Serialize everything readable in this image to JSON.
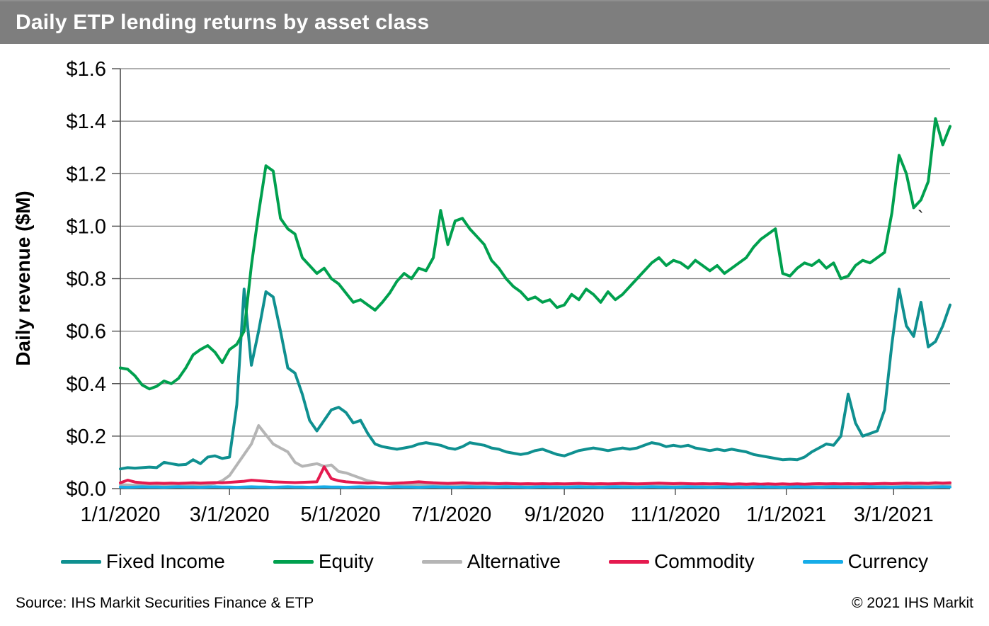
{
  "header": {
    "title": "Daily ETP lending returns by asset class"
  },
  "footer": {
    "source": "Source: IHS Markit Securities Finance & ETP",
    "copyright": "© 2021 IHS Markit"
  },
  "stray_mark": "`",
  "chart_data": {
    "type": "line",
    "title": "Daily ETP lending returns by asset class",
    "xlabel": "",
    "ylabel": "Daily revenue ($M)",
    "ylim": [
      0,
      1.6
    ],
    "grid": "horizontal",
    "legend_position": "bottom",
    "x_start_date": "1/1/2020",
    "x_span_days": 456,
    "sample_step_days": 4,
    "y_ticks": [
      {
        "value": 0.0,
        "label": "$0.0"
      },
      {
        "value": 0.2,
        "label": "$0.2"
      },
      {
        "value": 0.4,
        "label": "$0.4"
      },
      {
        "value": 0.6,
        "label": "$0.6"
      },
      {
        "value": 0.8,
        "label": "$0.8"
      },
      {
        "value": 1.0,
        "label": "$1.0"
      },
      {
        "value": 1.2,
        "label": "$1.2"
      },
      {
        "value": 1.4,
        "label": "$1.4"
      },
      {
        "value": 1.6,
        "label": "$1.6"
      }
    ],
    "x_ticks": [
      {
        "day": 0,
        "label": "1/1/2020"
      },
      {
        "day": 60,
        "label": "3/1/2020"
      },
      {
        "day": 121,
        "label": "5/1/2020"
      },
      {
        "day": 182,
        "label": "7/1/2020"
      },
      {
        "day": 244,
        "label": "9/1/2020"
      },
      {
        "day": 305,
        "label": "11/1/2020"
      },
      {
        "day": 366,
        "label": "1/1/2021"
      },
      {
        "day": 425,
        "label": "3/1/2021"
      }
    ],
    "series": [
      {
        "name": "Fixed Income",
        "color": "#0f9090",
        "values": [
          0.075,
          0.08,
          0.078,
          0.08,
          0.082,
          0.08,
          0.1,
          0.095,
          0.09,
          0.092,
          0.11,
          0.095,
          0.12,
          0.125,
          0.115,
          0.12,
          0.32,
          0.76,
          0.47,
          0.6,
          0.75,
          0.73,
          0.6,
          0.46,
          0.44,
          0.36,
          0.26,
          0.22,
          0.26,
          0.3,
          0.31,
          0.29,
          0.25,
          0.26,
          0.21,
          0.17,
          0.16,
          0.155,
          0.15,
          0.155,
          0.16,
          0.17,
          0.175,
          0.17,
          0.165,
          0.155,
          0.15,
          0.16,
          0.175,
          0.17,
          0.165,
          0.155,
          0.15,
          0.14,
          0.135,
          0.13,
          0.135,
          0.145,
          0.15,
          0.14,
          0.13,
          0.125,
          0.135,
          0.145,
          0.15,
          0.155,
          0.15,
          0.145,
          0.15,
          0.155,
          0.15,
          0.155,
          0.165,
          0.175,
          0.17,
          0.16,
          0.165,
          0.16,
          0.165,
          0.155,
          0.15,
          0.145,
          0.15,
          0.145,
          0.15,
          0.145,
          0.14,
          0.13,
          0.125,
          0.12,
          0.115,
          0.11,
          0.112,
          0.11,
          0.12,
          0.14,
          0.155,
          0.17,
          0.165,
          0.2,
          0.36,
          0.25,
          0.2,
          0.21,
          0.22,
          0.3,
          0.55,
          0.76,
          0.62,
          0.58,
          0.71,
          0.54,
          0.56,
          0.62,
          0.7
        ]
      },
      {
        "name": "Equity",
        "color": "#00a04e",
        "values": [
          0.46,
          0.455,
          0.43,
          0.395,
          0.38,
          0.39,
          0.41,
          0.4,
          0.42,
          0.46,
          0.51,
          0.53,
          0.545,
          0.52,
          0.48,
          0.53,
          0.55,
          0.6,
          0.85,
          1.05,
          1.23,
          1.21,
          1.03,
          0.99,
          0.97,
          0.88,
          0.85,
          0.82,
          0.84,
          0.8,
          0.78,
          0.745,
          0.71,
          0.72,
          0.7,
          0.68,
          0.71,
          0.745,
          0.79,
          0.82,
          0.8,
          0.84,
          0.83,
          0.88,
          1.06,
          0.93,
          1.02,
          1.03,
          0.99,
          0.96,
          0.93,
          0.87,
          0.84,
          0.8,
          0.77,
          0.75,
          0.72,
          0.73,
          0.71,
          0.72,
          0.69,
          0.7,
          0.74,
          0.72,
          0.76,
          0.74,
          0.71,
          0.75,
          0.72,
          0.74,
          0.77,
          0.8,
          0.83,
          0.86,
          0.88,
          0.85,
          0.87,
          0.86,
          0.84,
          0.87,
          0.85,
          0.83,
          0.85,
          0.82,
          0.84,
          0.86,
          0.88,
          0.92,
          0.95,
          0.97,
          0.99,
          0.82,
          0.81,
          0.84,
          0.86,
          0.85,
          0.87,
          0.84,
          0.86,
          0.8,
          0.81,
          0.85,
          0.87,
          0.86,
          0.88,
          0.9,
          1.05,
          1.27,
          1.2,
          1.07,
          1.1,
          1.17,
          1.41,
          1.31,
          1.38
        ]
      },
      {
        "name": "Alternative",
        "color": "#b5b5b5",
        "values": [
          0.015,
          0.014,
          0.013,
          0.014,
          0.013,
          0.012,
          0.013,
          0.014,
          0.013,
          0.014,
          0.015,
          0.014,
          0.016,
          0.02,
          0.03,
          0.05,
          0.09,
          0.13,
          0.17,
          0.24,
          0.205,
          0.17,
          0.155,
          0.14,
          0.1,
          0.085,
          0.09,
          0.095,
          0.085,
          0.09,
          0.065,
          0.06,
          0.05,
          0.04,
          0.03,
          0.025,
          0.02,
          0.018,
          0.016,
          0.015,
          0.016,
          0.015,
          0.016,
          0.015,
          0.014,
          0.015,
          0.014,
          0.015,
          0.016,
          0.015,
          0.014,
          0.015,
          0.014,
          0.013,
          0.014,
          0.013,
          0.014,
          0.015,
          0.014,
          0.013,
          0.014,
          0.013,
          0.014,
          0.015,
          0.014,
          0.013,
          0.014,
          0.013,
          0.014,
          0.015,
          0.014,
          0.013,
          0.014,
          0.015,
          0.014,
          0.013,
          0.014,
          0.013,
          0.014,
          0.013,
          0.012,
          0.013,
          0.012,
          0.013,
          0.012,
          0.013,
          0.012,
          0.013,
          0.012,
          0.013,
          0.012,
          0.013,
          0.012,
          0.013,
          0.012,
          0.013,
          0.012,
          0.013,
          0.014,
          0.013,
          0.014,
          0.013,
          0.012,
          0.013,
          0.012,
          0.013,
          0.014,
          0.013,
          0.014,
          0.013,
          0.014,
          0.013,
          0.014,
          0.013,
          0.014
        ]
      },
      {
        "name": "Commodity",
        "color": "#e51a4f",
        "values": [
          0.022,
          0.032,
          0.025,
          0.022,
          0.02,
          0.021,
          0.02,
          0.021,
          0.02,
          0.021,
          0.022,
          0.021,
          0.022,
          0.023,
          0.022,
          0.024,
          0.026,
          0.028,
          0.032,
          0.03,
          0.028,
          0.026,
          0.025,
          0.024,
          0.023,
          0.024,
          0.025,
          0.026,
          0.083,
          0.038,
          0.03,
          0.026,
          0.024,
          0.022,
          0.021,
          0.022,
          0.021,
          0.02,
          0.021,
          0.022,
          0.024,
          0.026,
          0.024,
          0.022,
          0.021,
          0.02,
          0.021,
          0.022,
          0.021,
          0.02,
          0.021,
          0.02,
          0.019,
          0.02,
          0.019,
          0.018,
          0.019,
          0.018,
          0.019,
          0.018,
          0.019,
          0.018,
          0.019,
          0.02,
          0.019,
          0.018,
          0.019,
          0.018,
          0.019,
          0.02,
          0.019,
          0.018,
          0.019,
          0.02,
          0.021,
          0.02,
          0.019,
          0.02,
          0.019,
          0.018,
          0.019,
          0.018,
          0.019,
          0.018,
          0.017,
          0.018,
          0.017,
          0.018,
          0.017,
          0.018,
          0.017,
          0.018,
          0.017,
          0.018,
          0.017,
          0.018,
          0.019,
          0.018,
          0.019,
          0.018,
          0.019,
          0.018,
          0.019,
          0.018,
          0.019,
          0.02,
          0.019,
          0.02,
          0.021,
          0.02,
          0.021,
          0.02,
          0.022,
          0.021,
          0.022
        ]
      },
      {
        "name": "Currency",
        "color": "#16ace8",
        "values": [
          0.006,
          0.005,
          0.006,
          0.007,
          0.006,
          0.006,
          0.005,
          0.006,
          0.007,
          0.006,
          0.006,
          0.005,
          0.006,
          0.007,
          0.006,
          0.006,
          0.005,
          0.006,
          0.007,
          0.006,
          0.006,
          0.005,
          0.006,
          0.007,
          0.006,
          0.006,
          0.005,
          0.006,
          0.007,
          0.006,
          0.006,
          0.005,
          0.006,
          0.007,
          0.006,
          0.006,
          0.005,
          0.006,
          0.007,
          0.006,
          0.006,
          0.005,
          0.006,
          0.007,
          0.006,
          0.006,
          0.005,
          0.006,
          0.007,
          0.006,
          0.006,
          0.005,
          0.006,
          0.007,
          0.006,
          0.006,
          0.005,
          0.006,
          0.007,
          0.006,
          0.006,
          0.005,
          0.006,
          0.007,
          0.006,
          0.006,
          0.005,
          0.006,
          0.007,
          0.006,
          0.006,
          0.005,
          0.006,
          0.007,
          0.006,
          0.006,
          0.005,
          0.006,
          0.007,
          0.006,
          0.006,
          0.005,
          0.006,
          0.007,
          0.006,
          0.006,
          0.005,
          0.006,
          0.007,
          0.006,
          0.006,
          0.005,
          0.006,
          0.007,
          0.006,
          0.006,
          0.005,
          0.006,
          0.007,
          0.006,
          0.006,
          0.005,
          0.006,
          0.007,
          0.006,
          0.006,
          0.005,
          0.006,
          0.007,
          0.006,
          0.006,
          0.005,
          0.006,
          0.007,
          0.006
        ]
      }
    ]
  }
}
